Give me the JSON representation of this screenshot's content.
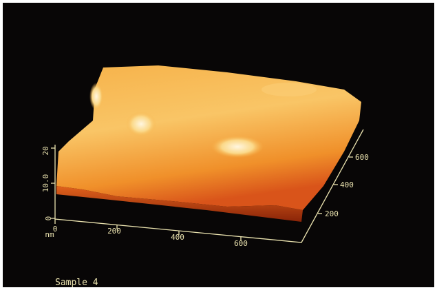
{
  "axes": {
    "x_ticks": [
      "0",
      "200",
      "400",
      "600"
    ],
    "y_ticks": [
      "200",
      "400",
      "600"
    ],
    "z_ticks": [
      "0",
      "10.0",
      "20"
    ],
    "unit": "nm"
  },
  "caption": "Sample 4"
}
